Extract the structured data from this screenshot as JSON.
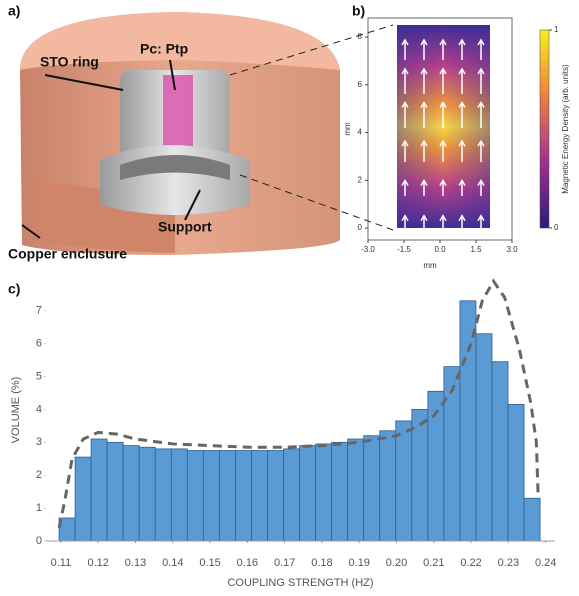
{
  "panel_labels": [
    "a)",
    "b)",
    "c)"
  ],
  "diagram": {
    "labels": [
      "STO ring",
      "Pc: Ptp",
      "Support",
      "Copper enclusure"
    ]
  },
  "chart_data": [
    {
      "type": "heatmap",
      "xlabel": "mm",
      "ylabel": "mm",
      "xlim": [
        -3,
        3
      ],
      "xticks": [
        {
          "value": -3,
          "label": "-3.0"
        },
        -1.5,
        {
          "value": 0,
          "label": "0.0"
        },
        1.5,
        {
          "value": 3,
          "label": "3.0"
        }
      ],
      "ylim": [
        -0.5,
        8.8
      ],
      "yticks": [
        0,
        2,
        4,
        6,
        8
      ],
      "colorbar_label": "Magnetic Energy Density (arb. units)",
      "clim": [
        0,
        1
      ],
      "cticks": [
        0,
        1
      ]
    },
    {
      "type": "histogram",
      "xlabel": "COUPLING STRENGTH (HZ)",
      "ylabel": "VOLUME (%)",
      "color": "#5b9bd5",
      "edgecolor": "#2f5f8a",
      "bins": [
        0.1095,
        0.1138,
        0.1181,
        0.1224,
        0.1267,
        0.131,
        0.1353,
        0.1396,
        0.1439,
        0.1482,
        0.1525,
        0.1568,
        0.1611,
        0.1654,
        0.1697,
        0.174,
        0.1783,
        0.1826,
        0.1869,
        0.1912,
        0.1955,
        0.1998,
        0.2041,
        0.2084,
        0.2127,
        0.217,
        0.2213,
        0.2256,
        0.2299,
        0.2342,
        0.2385
      ],
      "values": [
        0.7,
        2.55,
        3.1,
        3.0,
        2.9,
        2.85,
        2.8,
        2.8,
        2.75,
        2.75,
        2.75,
        2.75,
        2.75,
        2.75,
        2.8,
        2.9,
        2.95,
        3.0,
        3.1,
        3.2,
        3.35,
        3.65,
        4.0,
        4.55,
        5.3,
        7.3,
        6.3,
        5.45,
        4.15,
        1.3
      ],
      "envelope": {
        "color": "#666666",
        "x": [
          0.1095,
          0.111,
          0.113,
          0.116,
          0.12,
          0.125,
          0.13,
          0.14,
          0.15,
          0.16,
          0.17,
          0.18,
          0.19,
          0.2,
          0.205,
          0.21,
          0.215,
          0.22,
          0.223,
          0.226,
          0.229,
          0.233,
          0.236,
          0.2375,
          0.238
        ],
        "values": [
          0.4,
          1.2,
          2.5,
          3.1,
          3.3,
          3.25,
          3.1,
          2.95,
          2.9,
          2.85,
          2.85,
          2.9,
          3.0,
          3.2,
          3.45,
          3.8,
          4.6,
          6.0,
          7.3,
          7.9,
          7.4,
          5.8,
          4.2,
          3.0,
          1.3
        ]
      },
      "xlim": [
        0.106,
        0.2425
      ],
      "xticks": [
        0.11,
        0.12,
        0.13,
        0.14,
        0.15,
        0.16,
        0.17,
        0.18,
        0.19,
        {
          "value": 0.2,
          "label": "0.20"
        },
        0.21,
        0.22,
        0.23,
        0.24
      ],
      "ylim": [
        0,
        8.1
      ],
      "yticks": [
        0,
        1,
        2,
        3,
        4,
        5,
        6,
        7
      ]
    }
  ]
}
